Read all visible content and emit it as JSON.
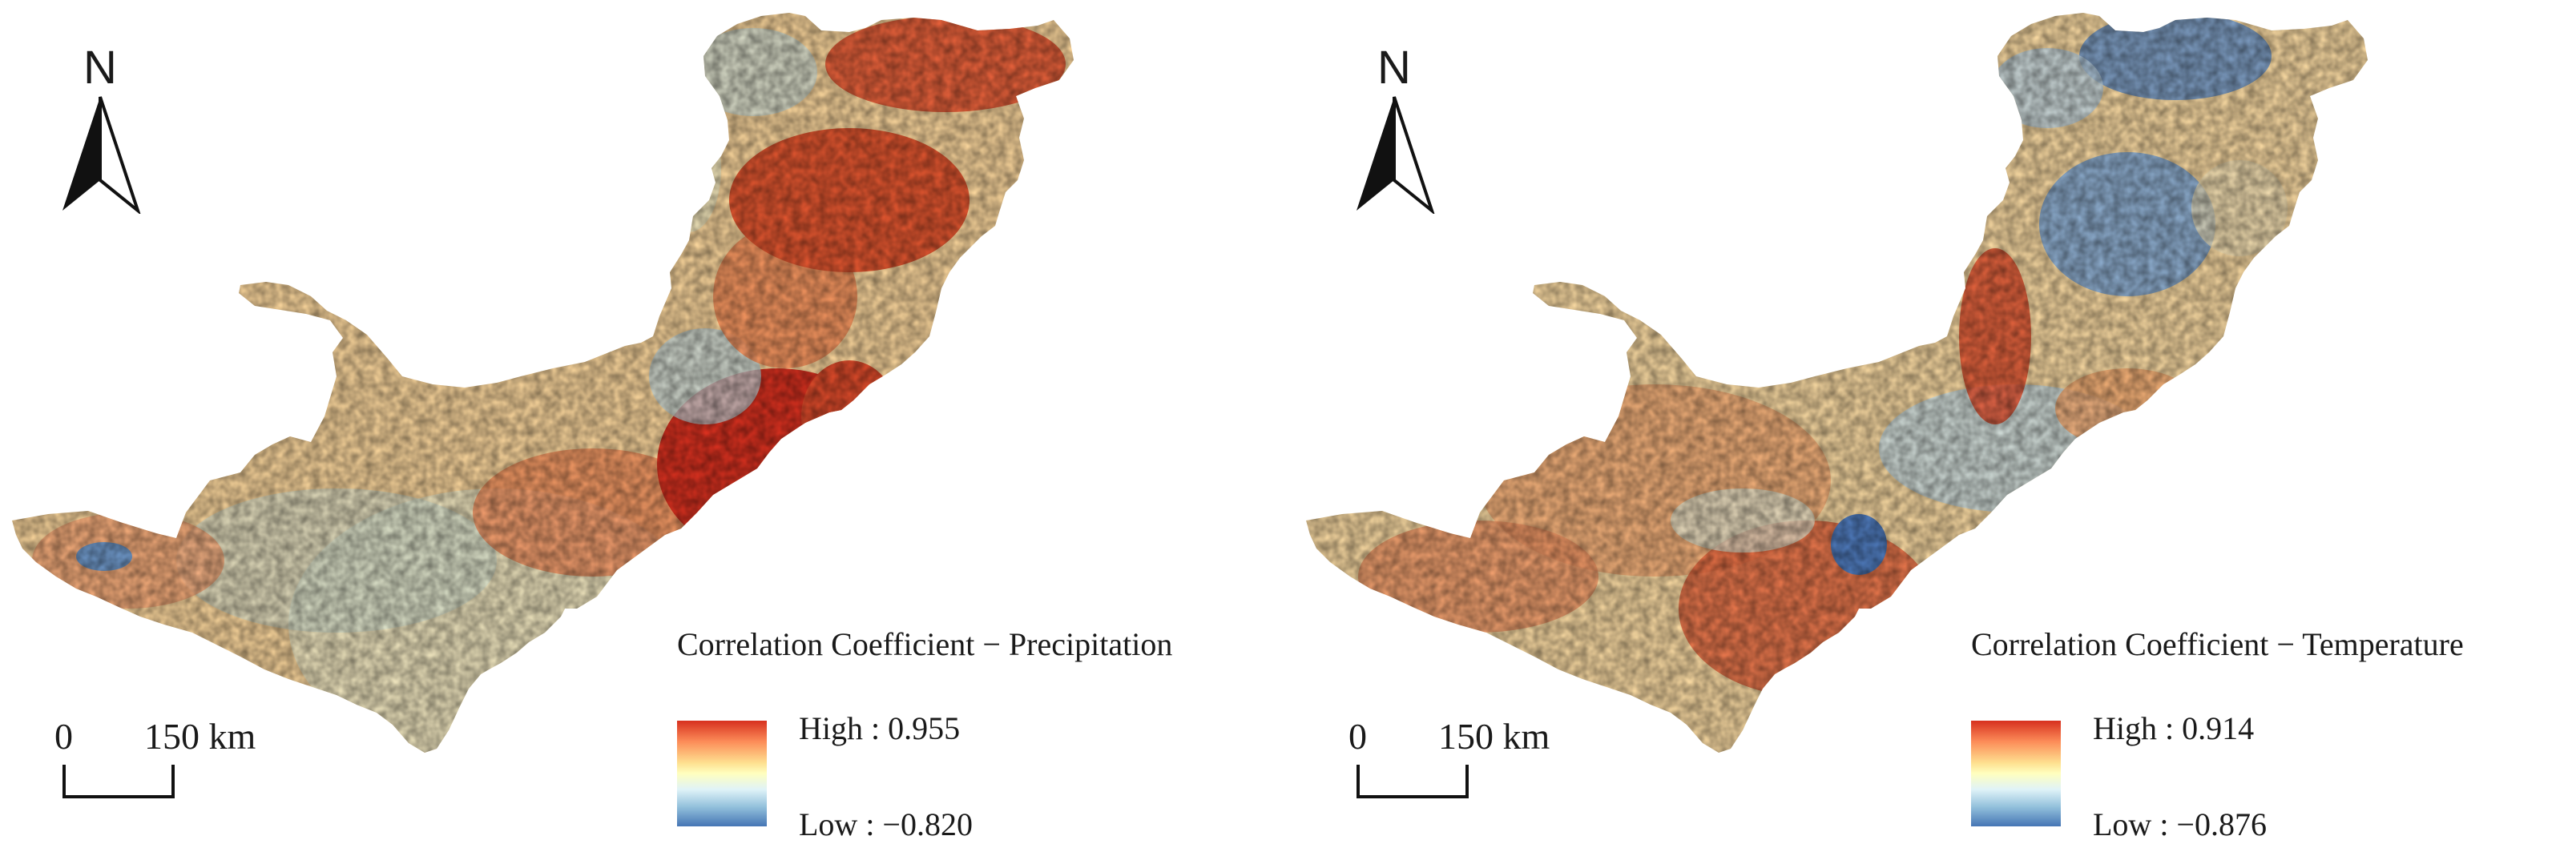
{
  "figure": {
    "panels": [
      {
        "legend": {
          "title": "Correlation Coefficient − Precipitation",
          "high_label": "High : 0.955",
          "low_label": "Low : −0.820",
          "high_value": 0.955,
          "low_value": -0.82,
          "ramp_colors": [
            "#d7301f",
            "#fc8d59",
            "#fee090",
            "#ffffbf",
            "#e0f3f8",
            "#91bfdb",
            "#4575b4"
          ]
        },
        "north_label": "N",
        "scale": {
          "zero": "0",
          "distance": "150 km"
        },
        "dominant_tone": "red"
      },
      {
        "legend": {
          "title": "Correlation Coefficient − Temperature",
          "high_label": "High : 0.914",
          "low_label": "Low : −0.876",
          "high_value": 0.914,
          "low_value": -0.876,
          "ramp_colors": [
            "#d7301f",
            "#fc8d59",
            "#fee090",
            "#ffffbf",
            "#e0f3f8",
            "#91bfdb",
            "#4575b4"
          ]
        },
        "north_label": "N",
        "scale": {
          "zero": "0",
          "distance": "150 km"
        },
        "dominant_tone": "mixed"
      }
    ]
  }
}
